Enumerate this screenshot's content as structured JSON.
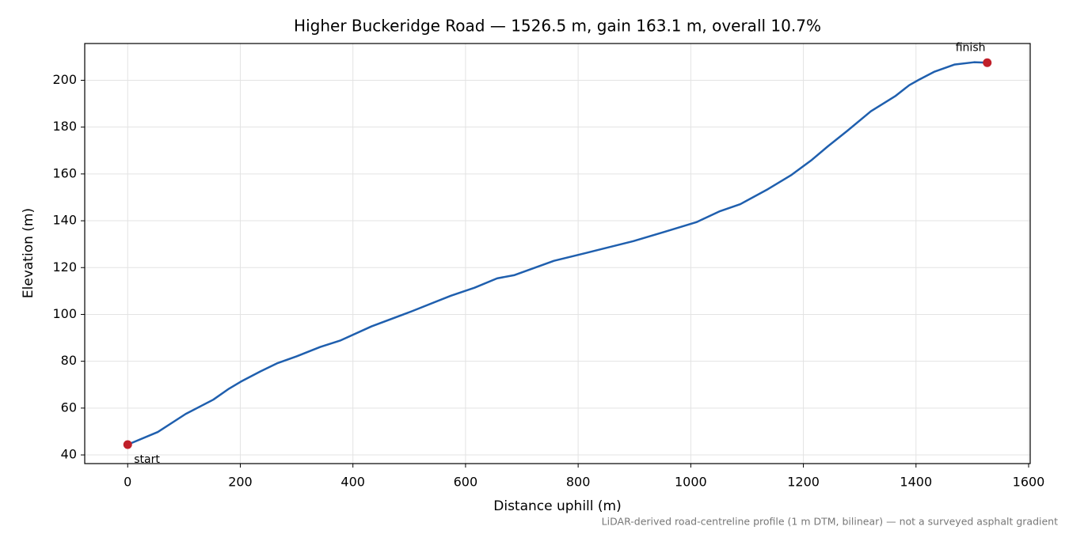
{
  "chart_data": {
    "type": "line",
    "title": "Higher Buckeridge Road — 1526.5 m, gain 163.1 m, overall 10.7%",
    "x_label": "Distance uphill (m)",
    "y_label": "Elevation (m)",
    "note": "LiDAR-derived road-centreline profile (1 m DTM, bilinear) — not a surveyed asphalt gradient",
    "xlim": [
      -76.3,
      1602.8
    ],
    "ylim": [
      36.3,
      215.7
    ],
    "xticks": [
      0,
      200,
      400,
      600,
      800,
      1000,
      1200,
      1400,
      1600
    ],
    "yticks": [
      40,
      60,
      80,
      100,
      120,
      140,
      160,
      180,
      200
    ],
    "grid": true,
    "x": [
      0,
      53.5,
      103,
      152,
      180,
      201,
      236,
      265,
      300,
      342,
      377,
      433,
      504,
      574,
      616,
      656,
      687,
      757,
      813,
      898,
      954,
      1010,
      1052,
      1088,
      1137,
      1179,
      1215,
      1243,
      1278,
      1320,
      1363,
      1388,
      1405,
      1433,
      1468,
      1503,
      1526.5
    ],
    "series": [
      {
        "color": "#1f5fae",
        "values": [
          44.4,
          49.8,
          57.5,
          63.6,
          68.3,
          71.3,
          75.7,
          79.1,
          82.1,
          86.1,
          88.8,
          94.9,
          101.3,
          108.0,
          111.4,
          115.4,
          116.8,
          122.9,
          126.2,
          131.3,
          135.3,
          139.4,
          144.1,
          147.1,
          153.5,
          159.6,
          166.0,
          171.7,
          178.4,
          186.8,
          193.2,
          197.9,
          200.2,
          203.7,
          206.7,
          207.7,
          207.5
        ]
      }
    ],
    "markers": {
      "color": "#c0202a",
      "x": [
        0,
        1526.5
      ],
      "values": [
        44.4,
        207.5
      ],
      "labels": [
        "start",
        "finish"
      ]
    }
  }
}
